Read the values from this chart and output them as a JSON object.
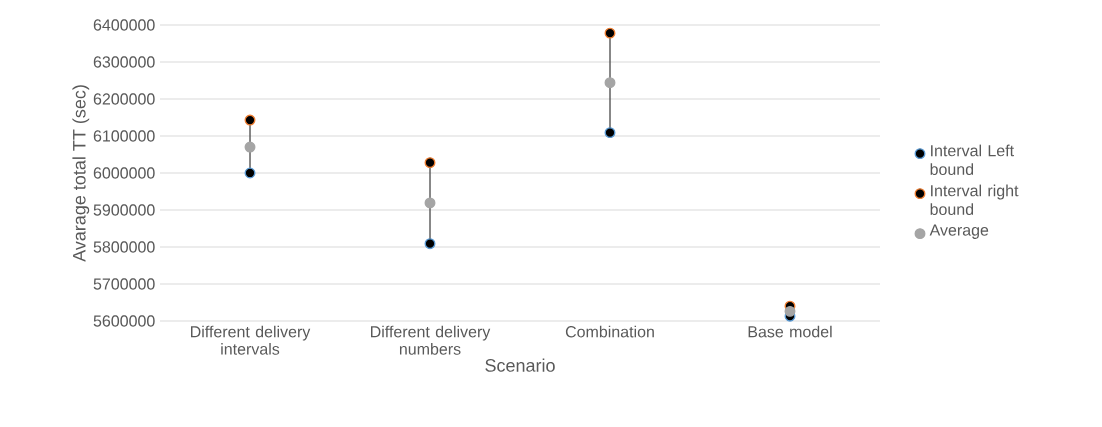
{
  "chart_data": {
    "type": "scatter",
    "xlabel": "Scenario",
    "ylabel": "Avarage total TT (sec)",
    "categories": [
      "Different delivery intervals",
      "Different delivery numbers",
      "Combination",
      "Base model"
    ],
    "series": [
      {
        "name": "Interval Left bound",
        "color": "#5b9bd5",
        "values": [
          6000000,
          5809000,
          6109000,
          5613000
        ]
      },
      {
        "name": "Interval right bound",
        "color": "#ed7d31",
        "values": [
          6143000,
          6028000,
          6378000,
          5640000
        ]
      },
      {
        "name": "Average",
        "color": "#a5a5a5",
        "values": [
          6070000,
          5919000,
          6244000,
          5626000
        ]
      }
    ],
    "ylim": [
      5600000,
      6400000
    ],
    "yticks": [
      5600000,
      5700000,
      5800000,
      5900000,
      6000000,
      6100000,
      6200000,
      6300000,
      6400000
    ],
    "grid": "y",
    "legend": "right",
    "marker": "circle"
  }
}
